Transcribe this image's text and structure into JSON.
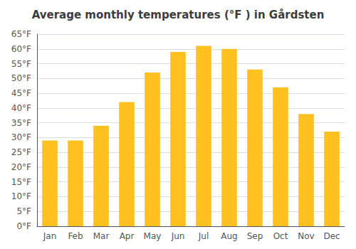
{
  "chart_data": {
    "type": "bar",
    "title": "Average monthly temperatures (°F ) in Gårdsten",
    "categories": [
      "Jan",
      "Feb",
      "Mar",
      "Apr",
      "May",
      "Jun",
      "Jul",
      "Aug",
      "Sep",
      "Oct",
      "Nov",
      "Dec"
    ],
    "values": [
      29,
      29,
      34,
      42,
      52,
      59,
      61,
      60,
      53,
      47,
      38,
      32
    ],
    "color": "#FFC020",
    "ylim": [
      0,
      65
    ],
    "yticks": [
      {
        "value": 0,
        "label": "0°F"
      },
      {
        "value": 5,
        "label": "5°F"
      },
      {
        "value": 10,
        "label": "10°F"
      },
      {
        "value": 15,
        "label": "15°F"
      },
      {
        "value": 20,
        "label": "20°F"
      },
      {
        "value": 25,
        "label": "25°F"
      },
      {
        "value": 30,
        "label": "30°F"
      },
      {
        "value": 35,
        "label": "35°F"
      },
      {
        "value": 40,
        "label": "40°F"
      },
      {
        "value": 45,
        "label": "45°F"
      },
      {
        "value": 50,
        "label": "50°F"
      },
      {
        "value": 55,
        "label": "55°F"
      },
      {
        "value": 60,
        "label": "60°F"
      },
      {
        "value": 65,
        "label": "65°F"
      }
    ],
    "grid": true
  }
}
